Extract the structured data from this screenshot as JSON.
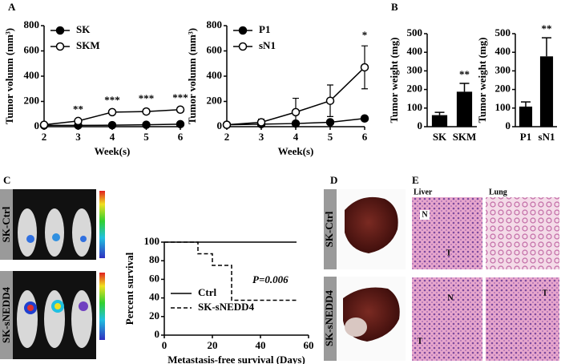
{
  "chart_data": [
    {
      "type": "line",
      "ylabel": "Tumor volumn (mm³)",
      "xlabel": "Week(s)",
      "x": [
        2,
        3,
        4,
        5,
        6
      ],
      "xlim": [
        2,
        6
      ],
      "xticks": [
        2,
        3,
        4,
        5,
        6
      ],
      "ylim": [
        0,
        800
      ],
      "yticks": [
        0,
        200,
        400,
        600,
        800
      ],
      "legend": "upper left",
      "series": [
        {
          "name": "SK",
          "color": "#000000",
          "marker": "filled",
          "values": [
            10,
            10,
            12,
            15,
            20
          ]
        },
        {
          "name": "SKM",
          "color": "#000000",
          "marker": "open",
          "values": [
            15,
            45,
            115,
            120,
            135
          ],
          "errors": [
            5,
            8,
            12,
            20,
            10
          ]
        }
      ],
      "annotations": [
        {
          "text": "**",
          "x": 3
        },
        {
          "text": "***",
          "x": 4
        },
        {
          "text": "***",
          "x": 5
        },
        {
          "text": "***",
          "x": 6
        }
      ]
    },
    {
      "type": "line",
      "ylabel": "Tumor volumn (mm³)",
      "xlabel": "Week(s)",
      "x": [
        2,
        3,
        4,
        5,
        6
      ],
      "xlim": [
        2,
        6
      ],
      "xticks": [
        2,
        3,
        4,
        5,
        6
      ],
      "ylim": [
        0,
        800
      ],
      "yticks": [
        0,
        200,
        400,
        600,
        800
      ],
      "legend": "upper left",
      "series": [
        {
          "name": "P1",
          "color": "#000000",
          "marker": "filled",
          "values": [
            15,
            20,
            25,
            35,
            65
          ]
        },
        {
          "name": "sN1",
          "color": "#000000",
          "marker": "open",
          "values": [
            15,
            35,
            115,
            205,
            470
          ],
          "errors": [
            10,
            25,
            110,
            125,
            170
          ]
        }
      ],
      "annotations": [
        {
          "text": "*",
          "x": 6
        }
      ]
    },
    {
      "type": "bar",
      "ylabel": "Tumor weight (mg)",
      "categories": [
        "SK",
        "SKM"
      ],
      "values": [
        62,
        188
      ],
      "errors": [
        15,
        45
      ],
      "color": "#000000",
      "ylim": [
        0,
        500
      ],
      "yticks": [
        0,
        100,
        200,
        300,
        400,
        500
      ],
      "annotations": [
        {
          "text": "**",
          "category": "SKM"
        }
      ]
    },
    {
      "type": "bar",
      "ylabel": "Tumor weight (mg)",
      "categories": [
        "P1",
        "sN1"
      ],
      "values": [
        108,
        378
      ],
      "errors": [
        25,
        100
      ],
      "color": "#000000",
      "ylim": [
        0,
        500
      ],
      "yticks": [
        0,
        100,
        200,
        300,
        400,
        500
      ],
      "annotations": [
        {
          "text": "**",
          "category": "sN1"
        }
      ]
    },
    {
      "type": "step",
      "ylabel": "Percent survival",
      "xlabel": "Metastasis-free survival (Days)",
      "xlim": [
        0,
        60
      ],
      "xticks": [
        0,
        20,
        40,
        60
      ],
      "ylim": [
        0,
        100
      ],
      "yticks": [
        0,
        20,
        40,
        60,
        80,
        100
      ],
      "series": [
        {
          "name": "Ctrl",
          "color": "#000000",
          "dash": false,
          "x": [
            0,
            55
          ],
          "values": [
            100,
            100
          ]
        },
        {
          "name": "SK-sNEDD4",
          "color": "#000000",
          "dash": true,
          "x": [
            0,
            14,
            20,
            28,
            55
          ],
          "values": [
            100,
            87.5,
            75,
            37.5,
            37.5
          ]
        }
      ],
      "annotations": [
        {
          "text": "P=0.006"
        }
      ]
    }
  ],
  "figure": {
    "panel_labels": [
      "A",
      "B",
      "C",
      "D",
      "E"
    ],
    "row_labels": [
      "SK-Ctrl",
      "SK-sNEDD4"
    ],
    "tissue_labels": [
      "Liver",
      "Lung"
    ],
    "region_labels": [
      "N",
      "T",
      "T",
      "N",
      "T"
    ]
  }
}
